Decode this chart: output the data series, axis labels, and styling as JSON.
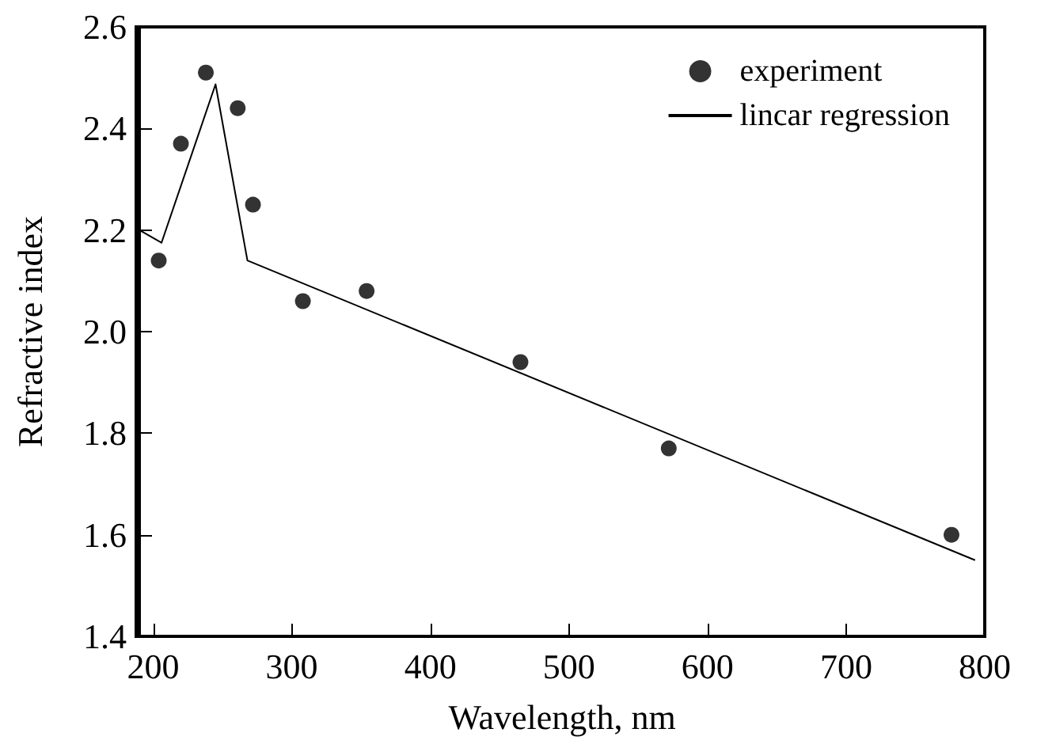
{
  "chart_data": {
    "type": "scatter",
    "xlabel": "Wavelength, nm",
    "ylabel": "Refractive index",
    "xlim": [
      190,
      800
    ],
    "xticks": [
      200,
      300,
      400,
      500,
      600,
      700,
      800
    ],
    "ylim": [
      1.4,
      2.6
    ],
    "yticks": [
      1.4,
      1.6,
      1.8,
      {
        "value": 2,
        "label": "2.0"
      },
      2.2,
      2.4,
      2.6
    ],
    "grid": false,
    "legend": "top right",
    "series": [
      {
        "name": "experiment",
        "marker": "circle",
        "color": "#000000",
        "x": [
          204,
          220,
          238,
          261,
          272,
          308,
          354,
          465,
          572,
          776
        ],
        "values": [
          2.14,
          2.37,
          2.51,
          2.44,
          2.25,
          2.06,
          2.08,
          1.94,
          1.77,
          1.6
        ]
      },
      {
        "name": "lincar regression",
        "type": "line",
        "marker": "none",
        "color": "#000000",
        "x": [
          190,
          206,
          245,
          268,
          793
        ],
        "values": [
          2.2,
          2.175,
          2.487,
          2.14,
          1.55
        ]
      }
    ]
  }
}
